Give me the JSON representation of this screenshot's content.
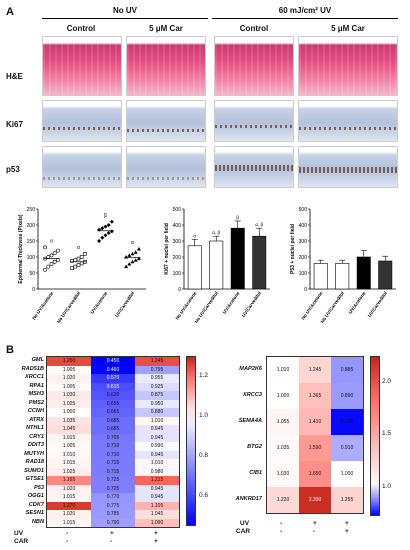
{
  "panelA": {
    "label": "A",
    "groups": [
      "No UV",
      "60 mJ/cm² UV"
    ],
    "columns": [
      "Control",
      "5 μM Car",
      "Control",
      "5 μM Car"
    ],
    "rows": [
      "H&E",
      "Ki67",
      "p53"
    ],
    "chart_data": [
      {
        "type": "scatter",
        "ylabel": "Epidermal Thickness (Pixels)",
        "ylim": [
          0,
          250
        ],
        "yticks": [
          0,
          50,
          100,
          150,
          200,
          250
        ],
        "categories": [
          "No UV/Acetone",
          "No UV/Carvedilol",
          "UV/Acetone",
          "UV/Carvedilol"
        ],
        "annotations": [
          "α",
          "α",
          "β",
          "α"
        ],
        "means": [
          95,
          85,
          182,
          98
        ],
        "points": [
          [
            60,
            70,
            78,
            85,
            90,
            95,
            100,
            105,
            112,
            120,
            130
          ],
          [
            65,
            70,
            75,
            80,
            85,
            88,
            90,
            95,
            100,
            110
          ],
          [
            150,
            160,
            168,
            175,
            180,
            185,
            190,
            195,
            200,
            210
          ],
          [
            70,
            78,
            85,
            90,
            95,
            100,
            105,
            110,
            115,
            125
          ]
        ]
      },
      {
        "type": "bar",
        "ylabel": "Ki67 + nuclei per field",
        "ylim": [
          0,
          500
        ],
        "yticks": [
          0,
          100,
          200,
          300,
          400,
          500
        ],
        "categories": [
          "No UV/Acetone",
          "No UV/Carvedilol",
          "UV/Acetone",
          "UV/Carvedilol"
        ],
        "values": [
          270,
          300,
          380,
          330
        ],
        "errors": [
          40,
          30,
          45,
          50
        ],
        "colors": [
          "#ffffff",
          "#ffffff",
          "#000000",
          "#333333"
        ],
        "annotations": [
          "α",
          "α, β",
          "β",
          "α, β"
        ]
      },
      {
        "type": "bar",
        "ylabel": "P53 + nuclei per field",
        "ylim": [
          0,
          500
        ],
        "yticks": [
          0,
          100,
          200,
          300,
          400,
          500
        ],
        "categories": [
          "No UV/Acetone",
          "No UV/Carvedilol",
          "UV/Acetone",
          "UV/Carvedilol"
        ],
        "values": [
          160,
          160,
          200,
          175
        ],
        "errors": [
          20,
          20,
          40,
          30
        ],
        "colors": [
          "#ffffff",
          "#ffffff",
          "#000000",
          "#333333"
        ],
        "annotations": [
          "",
          "",
          "",
          ""
        ]
      }
    ]
  },
  "panelB": {
    "label": "B",
    "chart_data": [
      {
        "type": "heatmap",
        "genes": [
          "GML",
          "RAD51B",
          "XRCC1",
          "RPA1",
          "MSH3",
          "PMS2",
          "CCNH",
          "ATRX",
          "NTHL1",
          "CRY1",
          "DDIT3",
          "MUTYH",
          "RAD18",
          "SUMO1",
          "GTSE1",
          "P53",
          "OGG1",
          "CDK7",
          "SESN1",
          "NBN"
        ],
        "values": [
          [
            1.25,
            0.45,
            1.245
          ],
          [
            1.005,
            0.46,
            0.795
          ],
          [
            1.02,
            0.57,
            0.955
          ],
          [
            1.005,
            0.615,
            0.925
          ],
          [
            1.03,
            0.63,
            0.875
          ],
          [
            1.025,
            0.655,
            0.95
          ],
          [
            1.0,
            0.665,
            0.88
          ],
          [
            1.035,
            0.685,
            1.01
          ],
          [
            1.045,
            0.685,
            0.945
          ],
          [
            1.015,
            0.705,
            0.945
          ],
          [
            1.005,
            0.71,
            0.99
          ],
          [
            1.01,
            0.71,
            0.945
          ],
          [
            1.015,
            0.715,
            1.01
          ],
          [
            1.025,
            0.715,
            0.98
          ],
          [
            1.165,
            0.725,
            1.215
          ],
          [
            1.02,
            0.725,
            0.945
          ],
          [
            1.015,
            0.77,
            0.945
          ],
          [
            1.27,
            0.775,
            1.105
          ],
          [
            1.02,
            0.785,
            1.045
          ],
          [
            1.015,
            0.79,
            1.09
          ]
        ],
        "colorbar_ticks": [
          "1.2",
          "1.0",
          "0.8",
          "0.6"
        ],
        "vmin": 0.45,
        "vmax": 1.3
      },
      {
        "type": "heatmap",
        "genes": [
          "MAP2K6",
          "XRCC3",
          "SEMA4A",
          "BTG2",
          "CIB1",
          "ANKRD17"
        ],
        "values": [
          [
            1.01,
            1.245,
            0.885
          ],
          [
            1.0,
            1.365,
            0.89
          ],
          [
            1.055,
            1.41,
            0.73
          ],
          [
            1.035,
            1.59,
            0.91
          ],
          [
            1.03,
            1.65,
            1.0
          ],
          [
            1.22,
            2.2,
            1.255
          ]
        ],
        "colorbar_ticks": [
          "2.0",
          "1.5",
          "1.0"
        ],
        "vmin": 0.72,
        "vmax": 2.25
      }
    ],
    "conditions": {
      "uv_label": "UV",
      "car_label": "CAR",
      "uv": [
        "-",
        "+",
        "+"
      ],
      "car": [
        "-",
        "-",
        "+"
      ]
    }
  }
}
